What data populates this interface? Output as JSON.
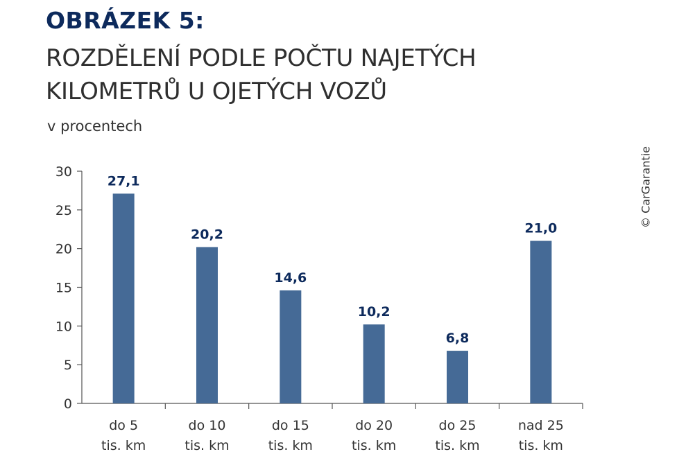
{
  "heading": {
    "figure_label": "OBRÁZEK 5:",
    "title_line_1": "ROZDĚLENÍ PODLE POČTU NAJETÝCH",
    "title_line_2": "KILOMETRŮ U OJETÝCH VOZŮ",
    "subtitle": "v procentech"
  },
  "copyright": "© CarGarantie",
  "colors": {
    "bar": "#456a96",
    "data_label": "#0d2a5c",
    "axis": "#555555"
  },
  "chart_data": {
    "type": "bar",
    "title": "ROZDĚLENÍ PODLE POČTU NAJETÝCH KILOMETRŮ U OJETÝCH VOZŮ",
    "ylabel": "v procentech",
    "categories": [
      [
        "do 5",
        "tis. km"
      ],
      [
        "do 10",
        "tis. km"
      ],
      [
        "do 15",
        "tis. km"
      ],
      [
        "do 20",
        "tis. km"
      ],
      [
        "do 25",
        "tis. km"
      ],
      [
        "nad 25",
        "tis. km"
      ]
    ],
    "values": [
      27.1,
      20.2,
      14.6,
      10.2,
      6.8,
      21.0
    ],
    "value_labels": [
      "27,1",
      "20,2",
      "14,6",
      "10,2",
      "6,8",
      "21,0"
    ],
    "ylim": [
      0,
      30
    ],
    "yticks": [
      0,
      5,
      10,
      15,
      20,
      25,
      30
    ],
    "grid": false,
    "legend": "none"
  }
}
